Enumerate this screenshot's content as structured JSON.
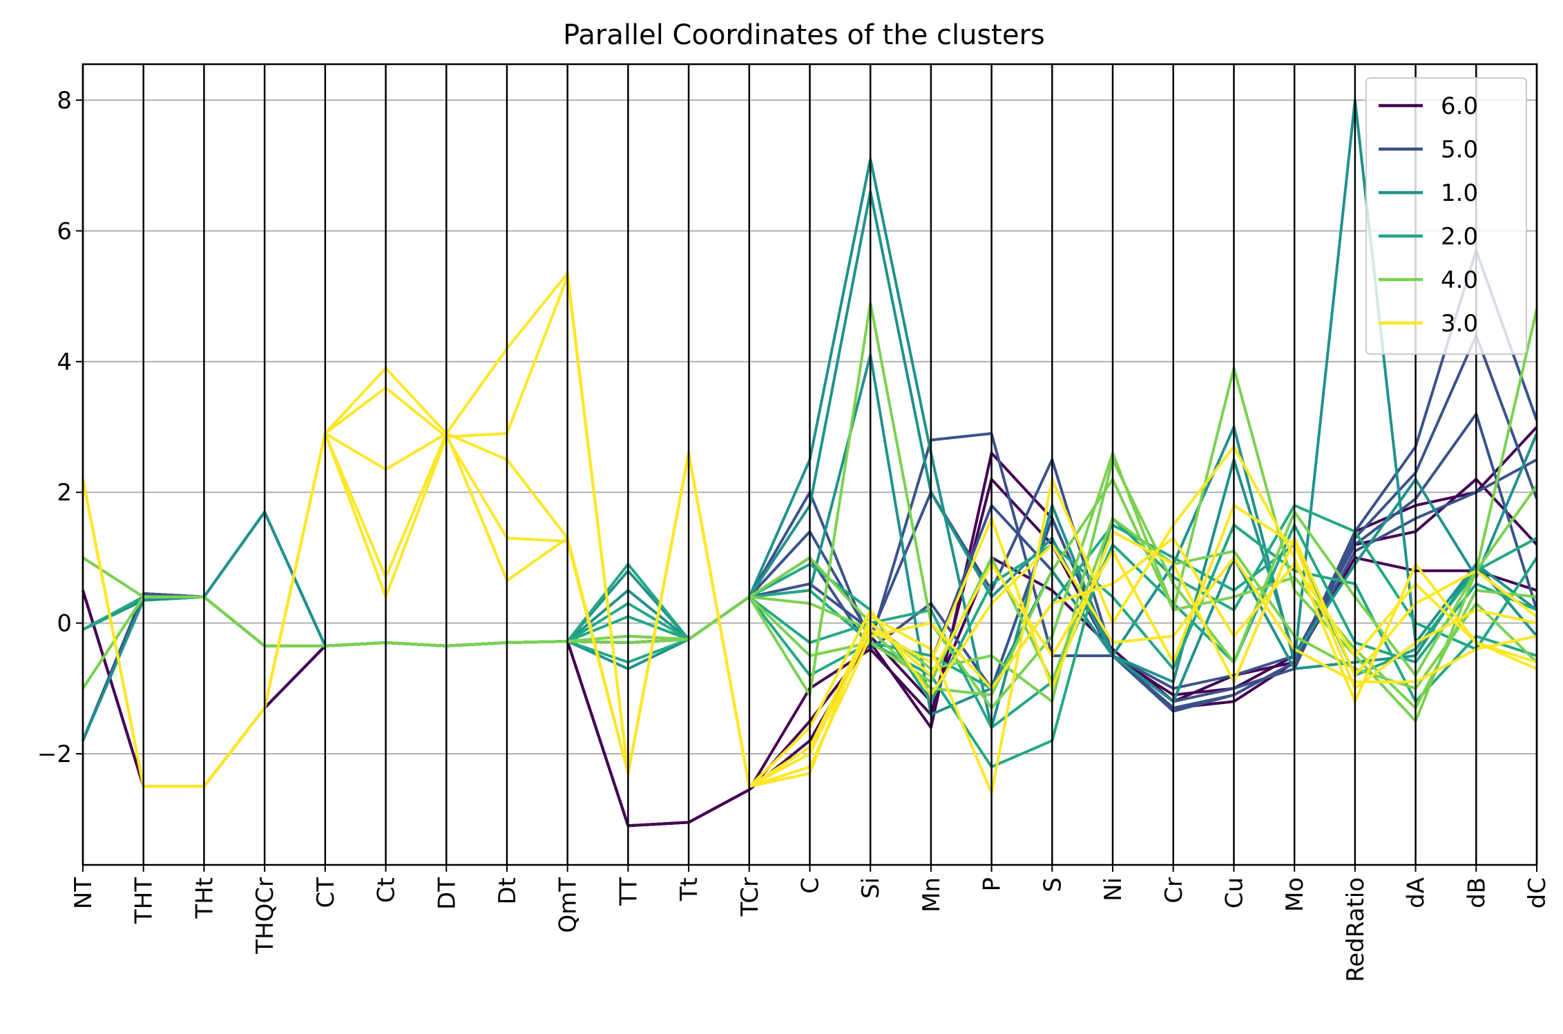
{
  "chart_data": {
    "type": "parallel_coordinates",
    "title": "Parallel Coordinates of the clusters",
    "xlabel": "",
    "ylabel": "",
    "axes": [
      "NT",
      "THT",
      "THt",
      "THQCr",
      "CT",
      "Ct",
      "DT",
      "Dt",
      "QmT",
      "TT",
      "Tt",
      "TCr",
      "C",
      "Si",
      "Mn",
      "P",
      "S",
      "Ni",
      "Cr",
      "Cu",
      "Mo",
      "RedRatio",
      "dA",
      "dB",
      "dC"
    ],
    "ylim": [
      -3.7,
      8.55
    ],
    "yticks": [
      "−2",
      "0",
      "2",
      "4",
      "6",
      "8"
    ],
    "grid": "horizontal",
    "legend_position": "top-right",
    "series": [
      {
        "name": "6.0",
        "color": "#440154",
        "lines": [
          [
            0.5,
            -2.5,
            -2.5,
            -1.3,
            -0.35,
            -0.3,
            -0.35,
            -0.3,
            -0.28,
            -3.1,
            -3.05,
            -2.55,
            -1.5,
            -0.3,
            -1.6,
            2.6,
            1.6,
            -0.5,
            -1.3,
            -1.2,
            -0.6,
            1.4,
            1.8,
            2.0,
            3.0
          ],
          [
            0.5,
            -2.5,
            -2.5,
            -1.3,
            -0.35,
            -0.3,
            -0.35,
            -0.3,
            -0.28,
            -3.1,
            -3.05,
            -2.55,
            -1.0,
            -0.4,
            -1.4,
            2.2,
            1.2,
            -0.5,
            -1.1,
            -1.0,
            -0.5,
            1.2,
            1.4,
            2.2,
            1.2
          ],
          [
            0.5,
            -2.5,
            -2.5,
            -1.3,
            -0.35,
            -0.3,
            -0.35,
            -0.3,
            -0.28,
            -3.1,
            -3.05,
            -2.55,
            -1.8,
            -0.2,
            -1.2,
            1.0,
            0.5,
            -0.4,
            -1.2,
            -0.8,
            -0.6,
            1.0,
            0.8,
            0.8,
            0.5
          ]
        ]
      },
      {
        "name": "5.0",
        "color": "#3b528b",
        "lines": [
          [
            -1.8,
            0.45,
            0.4,
            -0.35,
            -0.35,
            -0.3,
            -0.35,
            -0.3,
            -0.28,
            -0.3,
            -0.25,
            0.4,
            2.0,
            -0.3,
            2.8,
            2.9,
            -0.5,
            -0.5,
            -1.35,
            -1.1,
            -0.6,
            1.4,
            2.7,
            5.7,
            3.1
          ],
          [
            -1.8,
            0.45,
            0.4,
            -0.35,
            -0.35,
            -0.3,
            -0.35,
            -0.3,
            -0.28,
            -0.3,
            -0.25,
            0.4,
            1.4,
            -0.2,
            2.0,
            0.5,
            2.5,
            -0.5,
            -1.2,
            -1.0,
            -0.7,
            1.3,
            2.3,
            4.4,
            1.9
          ],
          [
            -1.8,
            0.45,
            0.4,
            -0.35,
            -0.35,
            -0.3,
            -0.35,
            -0.3,
            -0.28,
            -0.3,
            -0.25,
            0.4,
            1.0,
            -0.4,
            0.3,
            -1.0,
            1.6,
            -0.5,
            -1.0,
            -0.8,
            -0.5,
            1.2,
            1.9,
            3.2,
            0.2
          ],
          [
            -1.8,
            0.45,
            0.4,
            -0.35,
            -0.35,
            -0.3,
            -0.35,
            -0.3,
            -0.28,
            -0.3,
            -0.25,
            0.4,
            0.6,
            -0.1,
            -0.6,
            1.8,
            0.8,
            -0.5,
            -1.3,
            -1.1,
            -0.6,
            1.1,
            1.6,
            2.0,
            2.5
          ]
        ]
      },
      {
        "name": "1.0",
        "color": "#21918c",
        "lines": [
          [
            -1.8,
            0.35,
            0.4,
            1.7,
            -0.35,
            -0.3,
            -0.35,
            -0.3,
            -0.28,
            0.8,
            -0.25,
            0.4,
            2.5,
            7.1,
            2.6,
            -1.6,
            1.8,
            -0.5,
            0.9,
            3.0,
            -0.6,
            8.0,
            -0.3,
            0.9,
            0.2
          ],
          [
            -0.1,
            0.35,
            0.4,
            1.7,
            -0.35,
            -0.3,
            -0.35,
            -0.3,
            -0.28,
            0.5,
            -0.25,
            0.4,
            1.8,
            6.6,
            2.0,
            0.4,
            1.3,
            -0.5,
            -0.9,
            2.5,
            -0.5,
            0.9,
            2.2,
            0.7,
            2.9
          ],
          [
            -0.1,
            0.35,
            0.4,
            1.7,
            -0.35,
            -0.3,
            -0.35,
            -0.3,
            -0.28,
            -0.7,
            -0.25,
            0.4,
            0.5,
            4.1,
            -1.4,
            -1.0,
            0.8,
            -0.5,
            -1.2,
            1.0,
            -0.7,
            -0.6,
            -0.5,
            0.9,
            -0.2
          ]
        ]
      },
      {
        "name": "2.0",
        "color": "#22a884",
        "lines": [
          [
            -0.1,
            0.4,
            0.4,
            -0.35,
            -0.35,
            -0.3,
            -0.35,
            -0.3,
            -0.28,
            0.9,
            -0.25,
            0.4,
            0.5,
            -0.3,
            -0.8,
            -2.2,
            -1.8,
            1.6,
            0.7,
            0.2,
            1.8,
            1.4,
            0.0,
            -0.4,
            1.0
          ],
          [
            -0.1,
            0.4,
            0.4,
            -0.35,
            -0.35,
            -0.3,
            -0.35,
            -0.3,
            -0.28,
            0.3,
            -0.25,
            0.4,
            -0.3,
            0.0,
            0.2,
            -1.6,
            -0.9,
            1.2,
            0.3,
            -0.6,
            1.5,
            -0.3,
            -0.6,
            0.6,
            0.2
          ],
          [
            -0.1,
            0.4,
            0.4,
            -0.35,
            -0.35,
            -0.3,
            -0.35,
            -0.3,
            -0.28,
            -0.6,
            -0.25,
            0.4,
            0.9,
            0.2,
            -1.2,
            0.6,
            1.2,
            0.4,
            -0.7,
            1.5,
            0.8,
            0.6,
            -1.2,
            -0.2,
            -0.5
          ],
          [
            -0.1,
            0.4,
            0.4,
            -0.35,
            -0.35,
            -0.3,
            -0.35,
            -0.3,
            -0.28,
            0.1,
            -0.25,
            0.4,
            -0.8,
            -0.3,
            -0.5,
            -1.0,
            0.3,
            1.5,
            1.0,
            0.5,
            1.2,
            -0.8,
            -0.4,
            0.8,
            1.3
          ]
        ]
      },
      {
        "name": "4.0",
        "color": "#7ad151",
        "lines": [
          [
            1.0,
            0.4,
            0.4,
            -0.35,
            -0.35,
            -0.3,
            -0.35,
            -0.3,
            -0.28,
            -0.2,
            -0.25,
            0.4,
            -1.1,
            4.9,
            0.0,
            -1.3,
            -0.2,
            2.6,
            0.2,
            3.9,
            0.5,
            -0.5,
            -1.5,
            0.8,
            4.8
          ],
          [
            -1.0,
            0.4,
            0.4,
            -0.35,
            -0.35,
            -0.3,
            -0.35,
            -0.3,
            -0.28,
            -0.2,
            -0.25,
            0.4,
            1.0,
            0.0,
            -0.7,
            -0.5,
            -1.2,
            2.5,
            0.6,
            -0.6,
            1.7,
            0.4,
            -0.8,
            0.8,
            2.1
          ],
          [
            1.0,
            0.4,
            0.4,
            -0.35,
            -0.35,
            -0.3,
            -0.35,
            -0.3,
            -0.28,
            -0.3,
            -0.25,
            0.4,
            -0.5,
            -0.3,
            -0.9,
            1.0,
            -0.9,
            1.6,
            0.9,
            1.1,
            -0.2,
            -0.7,
            -1.0,
            0.3,
            -0.6
          ],
          [
            -1.0,
            0.4,
            0.4,
            -0.35,
            -0.35,
            -0.3,
            -0.35,
            -0.3,
            -0.28,
            -0.2,
            -0.25,
            0.4,
            0.3,
            -0.1,
            -1.0,
            -1.1,
            0.8,
            2.2,
            0.2,
            0.4,
            0.7,
            -0.4,
            -1.3,
            0.5,
            0.4
          ]
        ]
      },
      {
        "name": "3.0",
        "color": "#fde725",
        "lines": [
          [
            2.2,
            -2.5,
            -2.5,
            -1.3,
            2.9,
            3.9,
            2.9,
            4.2,
            5.35,
            -2.3,
            2.6,
            -2.5,
            -2.3,
            0.1,
            -0.4,
            -2.6,
            2.2,
            0.0,
            1.5,
            2.7,
            1.0,
            -1.2,
            0.9,
            -0.3,
            -0.7
          ],
          [
            2.2,
            -2.5,
            -2.5,
            -1.3,
            2.9,
            3.6,
            2.85,
            2.9,
            5.3,
            -2.3,
            2.6,
            -2.5,
            -2.0,
            -0.1,
            -0.6,
            1.6,
            -1.0,
            1.4,
            0.9,
            -0.9,
            1.3,
            -0.8,
            0.3,
            0.8,
            0.1
          ],
          [
            2.2,
            -2.5,
            -2.5,
            -1.3,
            2.9,
            2.35,
            2.9,
            0.65,
            1.3,
            -2.3,
            2.6,
            -2.5,
            -1.6,
            0.2,
            -1.1,
            0.3,
            1.2,
            -0.3,
            -0.2,
            1.0,
            -0.4,
            -0.9,
            -0.9,
            -0.4,
            -0.2
          ],
          [
            2.2,
            -2.5,
            -2.5,
            -1.3,
            2.9,
            0.4,
            2.85,
            1.3,
            1.25,
            -2.3,
            2.6,
            -2.5,
            -2.2,
            -0.2,
            0.0,
            -1.0,
            0.3,
            0.6,
            1.3,
            -0.2,
            0.9,
            -0.5,
            0.6,
            -0.3,
            -0.6
          ],
          [
            2.2,
            -2.5,
            -2.5,
            -1.3,
            2.9,
            0.7,
            2.9,
            2.5,
            1.3,
            -2.3,
            2.6,
            -2.5,
            -1.9,
            0.0,
            -0.8,
            0.9,
            -0.5,
            1.1,
            -0.6,
            1.8,
            1.2,
            -1.0,
            -0.3,
            0.2,
            0.0
          ]
        ]
      }
    ]
  }
}
